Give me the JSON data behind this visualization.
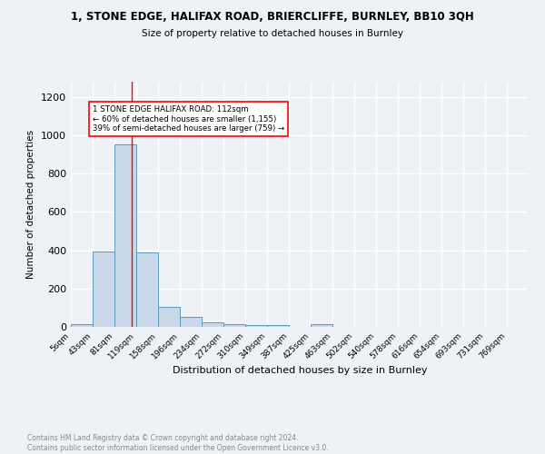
{
  "title": "1, STONE EDGE, HALIFAX ROAD, BRIERCLIFFE, BURNLEY, BB10 3QH",
  "subtitle": "Size of property relative to detached houses in Burnley",
  "xlabel": "Distribution of detached houses by size in Burnley",
  "ylabel": "Number of detached properties",
  "bin_labels": [
    "5sqm",
    "43sqm",
    "81sqm",
    "119sqm",
    "158sqm",
    "196sqm",
    "234sqm",
    "272sqm",
    "310sqm",
    "349sqm",
    "387sqm",
    "425sqm",
    "463sqm",
    "502sqm",
    "540sqm",
    "578sqm",
    "616sqm",
    "654sqm",
    "693sqm",
    "731sqm",
    "769sqm"
  ],
  "bin_edges": [
    5,
    43,
    81,
    119,
    158,
    196,
    234,
    272,
    310,
    349,
    387,
    425,
    463,
    502,
    540,
    578,
    616,
    654,
    693,
    731,
    769,
    807
  ],
  "bar_heights": [
    15,
    395,
    955,
    390,
    105,
    50,
    25,
    15,
    10,
    10,
    0,
    15,
    0,
    0,
    0,
    0,
    0,
    0,
    0,
    0,
    0
  ],
  "bar_color": "#c8d8e8",
  "bar_edge_color": "#5a9abf",
  "red_line_x": 112,
  "annotation_text": "1 STONE EDGE HALIFAX ROAD: 112sqm\n← 60% of detached houses are smaller (1,155)\n39% of semi-detached houses are larger (759) →",
  "ylim": [
    0,
    1280
  ],
  "yticks": [
    0,
    200,
    400,
    600,
    800,
    1000,
    1200
  ],
  "background_color": "#eef2f7",
  "grid_color": "#ffffff",
  "footer": "Contains HM Land Registry data © Crown copyright and database right 2024.\nContains public sector information licensed under the Open Government Licence v3.0."
}
